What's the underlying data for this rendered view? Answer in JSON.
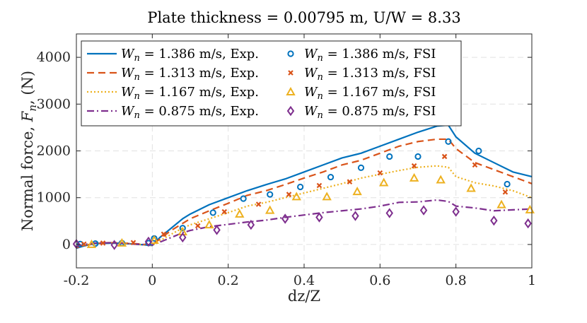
{
  "chart_data": {
    "type": "line",
    "title": "Plate thickness = 0.00795 m, U/W = 8.33",
    "xlabel": "dz/Z",
    "ylabel": "Normal force, F_n, (N)",
    "xlim": [
      -0.2,
      1.0
    ],
    "ylim": [
      -500,
      4500
    ],
    "xticks": [
      -0.2,
      0,
      0.2,
      0.4,
      0.6,
      0.8,
      1
    ],
    "xtick_labels": [
      "-0.2",
      "0",
      "0.2",
      "0.4",
      "0.6",
      "0.8",
      "1"
    ],
    "yticks": [
      0,
      1000,
      2000,
      3000,
      4000
    ],
    "ytick_labels": [
      "0",
      "1000",
      "2000",
      "3000",
      "4000"
    ],
    "grid": true,
    "legend_position": "top-left",
    "colors": {
      "blue": "#0072BD",
      "orange": "#D95319",
      "yellow": "#EDB120",
      "purple": "#7E2F8E",
      "axis": "#262626",
      "grid": "#e1e1e1"
    },
    "series": [
      {
        "name": "W_n = 1.386 m/s, Exp.",
        "legend_var": "W",
        "legend_sub": "n",
        "legend_rest": " = 1.386 m/s, Exp.",
        "kind": "line",
        "style": "solid",
        "color": "#0072BD",
        "x": [
          -0.2,
          -0.18,
          -0.15,
          -0.1,
          -0.05,
          0,
          0.02,
          0.05,
          0.08,
          0.1,
          0.15,
          0.2,
          0.25,
          0.3,
          0.35,
          0.4,
          0.45,
          0.5,
          0.55,
          0.6,
          0.65,
          0.7,
          0.75,
          0.78,
          0.8,
          0.85,
          0.9,
          0.95,
          1.0
        ],
        "y": [
          -80,
          -30,
          20,
          30,
          10,
          -20,
          150,
          350,
          550,
          650,
          850,
          1000,
          1150,
          1280,
          1400,
          1550,
          1700,
          1850,
          1950,
          2100,
          2250,
          2400,
          2530,
          2550,
          2300,
          1950,
          1750,
          1550,
          1450
        ]
      },
      {
        "name": "W_n = 1.313 m/s, Exp.",
        "legend_var": "W",
        "legend_sub": "n",
        "legend_rest": " = 1.313 m/s, Exp.",
        "kind": "line",
        "style": "dashed",
        "color": "#D95319",
        "x": [
          -0.2,
          -0.18,
          -0.15,
          -0.1,
          -0.05,
          0,
          0.02,
          0.05,
          0.08,
          0.1,
          0.15,
          0.2,
          0.25,
          0.3,
          0.35,
          0.4,
          0.45,
          0.5,
          0.55,
          0.6,
          0.65,
          0.7,
          0.75,
          0.78,
          0.8,
          0.85,
          0.9,
          0.95,
          1.0
        ],
        "y": [
          -70,
          -20,
          20,
          40,
          20,
          -10,
          120,
          300,
          450,
          550,
          720,
          880,
          1050,
          1150,
          1280,
          1420,
          1550,
          1700,
          1800,
          1950,
          2100,
          2200,
          2250,
          2250,
          2050,
          1750,
          1600,
          1450,
          1300
        ]
      },
      {
        "name": "W_n = 1.167 m/s, Exp.",
        "legend_var": "W",
        "legend_sub": "n",
        "legend_rest": " = 1.167 m/s, Exp.",
        "kind": "line",
        "style": "dotted",
        "color": "#EDB120",
        "x": [
          -0.2,
          -0.18,
          -0.15,
          -0.1,
          -0.05,
          0,
          0.02,
          0.05,
          0.08,
          0.1,
          0.15,
          0.2,
          0.25,
          0.3,
          0.35,
          0.4,
          0.45,
          0.5,
          0.55,
          0.6,
          0.65,
          0.7,
          0.75,
          0.78,
          0.8,
          0.85,
          0.9,
          0.95,
          1.0
        ],
        "y": [
          -60,
          -10,
          30,
          40,
          10,
          -20,
          80,
          220,
          350,
          420,
          550,
          680,
          820,
          900,
          1000,
          1100,
          1200,
          1300,
          1420,
          1500,
          1580,
          1650,
          1680,
          1650,
          1450,
          1320,
          1250,
          1150,
          1000
        ]
      },
      {
        "name": "W_n = 0.875 m/s, Exp.",
        "legend_var": "W",
        "legend_sub": "n",
        "legend_rest": " = 0.875 m/s, Exp.",
        "kind": "line",
        "style": "dashdot",
        "color": "#7E2F8E",
        "x": [
          -0.2,
          -0.18,
          -0.15,
          -0.1,
          -0.05,
          0,
          0.02,
          0.05,
          0.08,
          0.1,
          0.15,
          0.2,
          0.25,
          0.3,
          0.35,
          0.4,
          0.45,
          0.5,
          0.55,
          0.6,
          0.65,
          0.7,
          0.75,
          0.78,
          0.8,
          0.85,
          0.9,
          0.95,
          1.0
        ],
        "y": [
          -50,
          0,
          30,
          40,
          10,
          -10,
          50,
          150,
          250,
          300,
          380,
          430,
          480,
          520,
          580,
          630,
          680,
          720,
          760,
          820,
          900,
          910,
          950,
          920,
          820,
          780,
          720,
          740,
          760
        ]
      },
      {
        "name": "W_n = 1.386 m/s, FSI",
        "legend_var": "W",
        "legend_sub": "n",
        "legend_rest": " = 1.386 m/s, FSI",
        "kind": "marker",
        "marker": "circle",
        "color": "#0072BD",
        "x": [
          -0.19,
          -0.15,
          -0.08,
          -0.01,
          0.005,
          0.08,
          0.16,
          0.24,
          0.31,
          0.39,
          0.47,
          0.55,
          0.625,
          0.7,
          0.78,
          0.86,
          0.935
        ],
        "y": [
          10,
          20,
          30,
          30,
          130,
          350,
          680,
          980,
          1070,
          1230,
          1440,
          1640,
          1880,
          1880,
          2200,
          2000,
          1290
        ]
      },
      {
        "name": "W_n = 1.313 m/s, FSI",
        "legend_var": "W",
        "legend_sub": "n",
        "legend_rest": " = 1.313 m/s, FSI",
        "kind": "marker",
        "marker": "x",
        "color": "#D95319",
        "x": [
          -0.18,
          -0.13,
          -0.05,
          0.03,
          0.12,
          0.19,
          0.28,
          0.36,
          0.44,
          0.52,
          0.6,
          0.69,
          0.77,
          0.85,
          0.93
        ],
        "y": [
          10,
          30,
          40,
          220,
          400,
          700,
          860,
          1070,
          1260,
          1340,
          1530,
          1680,
          1880,
          1700,
          1120
        ]
      },
      {
        "name": "W_n = 1.167 m/s, FSI",
        "legend_var": "W",
        "legend_sub": "n",
        "legend_rest": " = 1.167 m/s, FSI",
        "kind": "marker",
        "marker": "triangle",
        "color": "#EDB120",
        "x": [
          -0.16,
          -0.08,
          0.005,
          0.08,
          0.15,
          0.23,
          0.31,
          0.38,
          0.46,
          0.54,
          0.61,
          0.69,
          0.76,
          0.84,
          0.92,
          0.995
        ],
        "y": [
          0,
          30,
          90,
          270,
          420,
          650,
          730,
          1020,
          1020,
          1130,
          1320,
          1420,
          1380,
          1200,
          850,
          740
        ]
      },
      {
        "name": "W_n = 0.875 m/s, FSI",
        "legend_var": "W",
        "legend_sub": "n",
        "legend_rest": " = 0.875 m/s, FSI",
        "kind": "marker",
        "marker": "diamond",
        "color": "#7E2F8E",
        "x": [
          -0.2,
          -0.1,
          -0.01,
          0.08,
          0.17,
          0.26,
          0.35,
          0.44,
          0.535,
          0.625,
          0.715,
          0.8,
          0.9,
          0.99
        ],
        "y": [
          10,
          -10,
          60,
          150,
          310,
          420,
          550,
          580,
          610,
          670,
          730,
          700,
          510,
          450
        ]
      }
    ]
  }
}
